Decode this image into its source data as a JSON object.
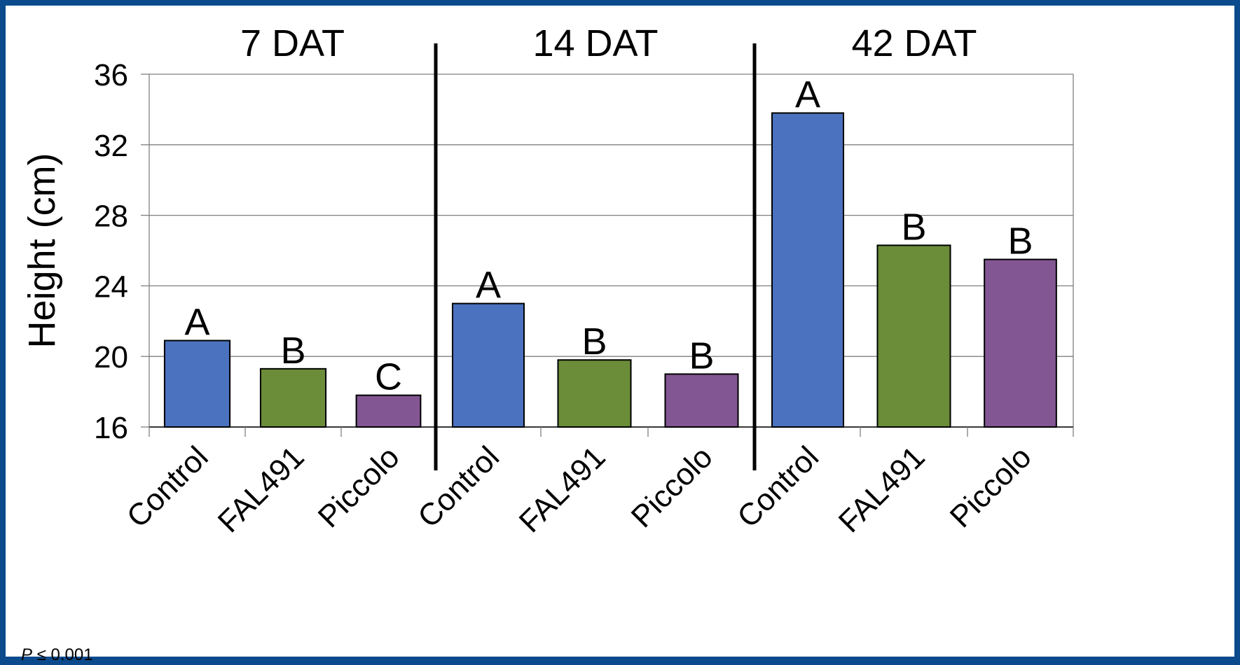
{
  "chart_data": {
    "type": "bar",
    "ylabel": "Height (cm)",
    "xlabel": "",
    "ylim": [
      16,
      36
    ],
    "yticks": [
      16,
      20,
      24,
      28,
      32,
      36
    ],
    "grid": true,
    "groups": [
      {
        "label": "7 DAT",
        "categories": [
          "Control",
          "FAL491",
          "Piccolo"
        ],
        "values": [
          20.9,
          19.3,
          17.8
        ],
        "letters": [
          "A",
          "B",
          "C"
        ]
      },
      {
        "label": "14 DAT",
        "categories": [
          "Control",
          "FAL491",
          "Piccolo"
        ],
        "values": [
          23.0,
          19.8,
          19.0
        ],
        "letters": [
          "A",
          "B",
          "B"
        ]
      },
      {
        "label": "42 DAT",
        "categories": [
          "Control",
          "FAL491",
          "Piccolo"
        ],
        "values": [
          33.8,
          26.3,
          25.5
        ],
        "letters": [
          "A",
          "B",
          "B"
        ]
      }
    ],
    "colors": {
      "Control": "#4a72bf",
      "FAL491": "#6b8c39",
      "Piccolo": "#825692"
    },
    "frame_color": "#0b4a8c"
  },
  "footnote": {
    "symbol": "P",
    "relation": "≤ 0.001"
  }
}
